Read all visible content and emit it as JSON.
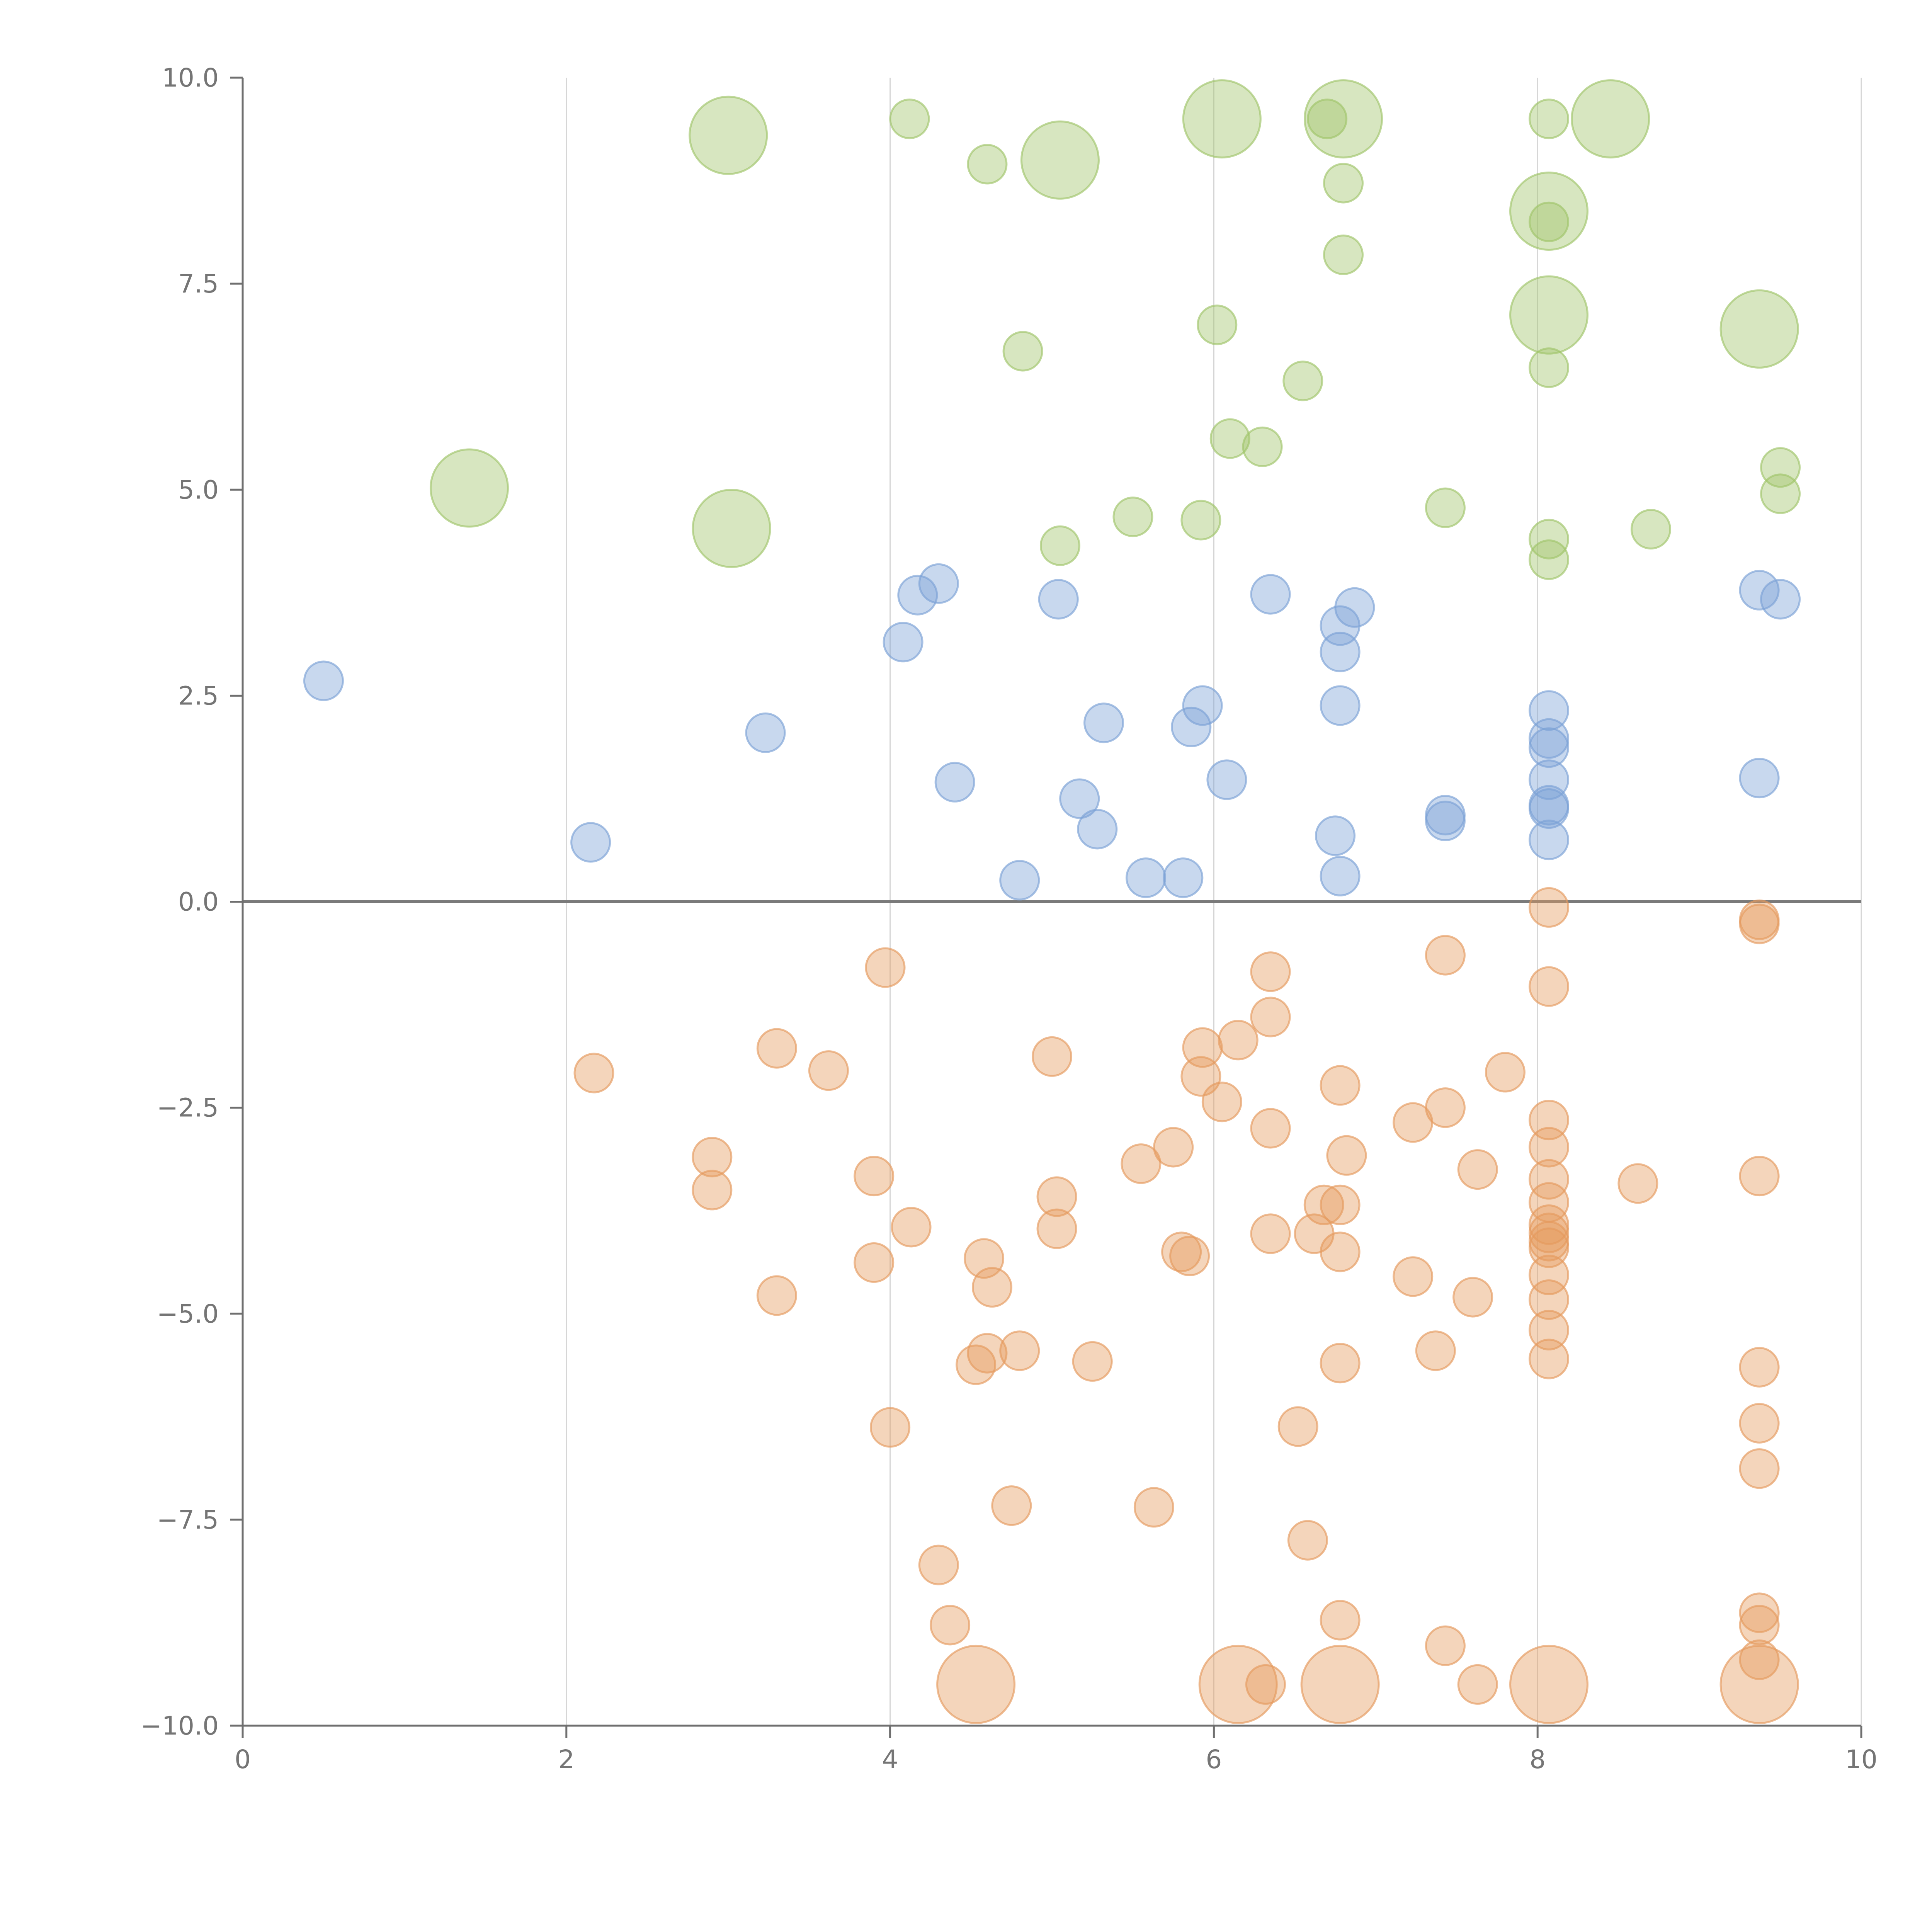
{
  "chart_data": {
    "type": "scatter",
    "title": "",
    "xlabel": "",
    "ylabel": "",
    "xlim": [
      0,
      10
    ],
    "ylim": [
      -10,
      10
    ],
    "grid": "vertical",
    "legend": "none",
    "x_ticks": [
      0,
      2,
      4,
      6,
      8,
      10
    ],
    "x_tick_labels": [
      "0",
      "2",
      "4",
      "6",
      "8",
      "10"
    ],
    "y_ticks": [
      10,
      7.5,
      5,
      2.5,
      0,
      -2.5,
      -5,
      -7.5,
      -10
    ],
    "y_tick_labels": [
      "10.0",
      "7.5",
      "5.0",
      "2.5",
      "0.0",
      "−2.5",
      "−5.0",
      "−7.5",
      "−10.0"
    ],
    "zero_line": 0,
    "series": [
      {
        "name": "green",
        "color": "#9fc46a",
        "points": [
          [
            3.0,
            9.3,
            3
          ],
          [
            4.12,
            9.5,
            1
          ],
          [
            4.6,
            8.95,
            1
          ],
          [
            5.05,
            9.0,
            3
          ],
          [
            6.05,
            9.5,
            3
          ],
          [
            6.7,
            9.5,
            1
          ],
          [
            6.8,
            9.5,
            3
          ],
          [
            8.45,
            9.5,
            3
          ],
          [
            8.07,
            9.5,
            1
          ],
          [
            6.8,
            8.72,
            1
          ],
          [
            8.07,
            8.38,
            3
          ],
          [
            8.07,
            8.25,
            1
          ],
          [
            6.8,
            7.85,
            1
          ],
          [
            8.07,
            7.12,
            3
          ],
          [
            9.37,
            6.95,
            3
          ],
          [
            6.02,
            7.0,
            1
          ],
          [
            4.82,
            6.68,
            1
          ],
          [
            6.55,
            6.32,
            1
          ],
          [
            8.07,
            6.48,
            1
          ],
          [
            6.1,
            5.62,
            1
          ],
          [
            6.3,
            5.52,
            1
          ],
          [
            1.4,
            5.02,
            3
          ],
          [
            3.02,
            4.53,
            3
          ],
          [
            5.05,
            4.32,
            1
          ],
          [
            5.5,
            4.67,
            1
          ],
          [
            5.92,
            4.63,
            1
          ],
          [
            7.43,
            4.78,
            1
          ],
          [
            8.07,
            4.4,
            1
          ],
          [
            8.07,
            4.15,
            1
          ],
          [
            8.7,
            4.52,
            1
          ],
          [
            9.5,
            5.27,
            1
          ],
          [
            9.5,
            4.95,
            1
          ]
        ]
      },
      {
        "name": "blue",
        "color": "#7ba1d6",
        "points": [
          [
            0.5,
            2.68,
            1
          ],
          [
            2.15,
            0.72,
            1
          ],
          [
            3.23,
            2.05,
            1
          ],
          [
            4.08,
            3.15,
            1
          ],
          [
            4.17,
            3.72,
            1
          ],
          [
            4.3,
            3.86,
            1
          ],
          [
            4.4,
            1.45,
            1
          ],
          [
            4.8,
            0.26,
            1
          ],
          [
            5.04,
            3.67,
            1
          ],
          [
            5.17,
            1.25,
            1
          ],
          [
            5.28,
            0.88,
            1
          ],
          [
            5.32,
            2.17,
            1
          ],
          [
            5.58,
            0.29,
            1
          ],
          [
            5.81,
            0.29,
            1
          ],
          [
            5.86,
            2.12,
            1
          ],
          [
            5.93,
            2.38,
            1
          ],
          [
            6.08,
            1.48,
            1
          ],
          [
            6.35,
            3.73,
            1
          ],
          [
            6.75,
            0.8,
            1
          ],
          [
            6.78,
            0.31,
            1
          ],
          [
            6.78,
            3.35,
            1
          ],
          [
            6.78,
            3.03,
            1
          ],
          [
            6.78,
            2.38,
            1
          ],
          [
            6.87,
            3.57,
            1
          ],
          [
            7.43,
            1.05,
            1
          ],
          [
            7.43,
            0.98,
            1
          ],
          [
            8.07,
            2.32,
            1
          ],
          [
            8.07,
            1.98,
            1
          ],
          [
            8.07,
            1.87,
            1
          ],
          [
            8.07,
            1.48,
            1
          ],
          [
            8.07,
            1.17,
            1
          ],
          [
            8.07,
            1.13,
            1
          ],
          [
            8.07,
            0.75,
            1
          ],
          [
            9.37,
            3.78,
            1
          ],
          [
            9.5,
            3.67,
            1
          ],
          [
            9.37,
            1.5,
            1
          ]
        ]
      },
      {
        "name": "orange",
        "color": "#e59a5e",
        "points": [
          [
            2.17,
            -2.08,
            1
          ],
          [
            2.9,
            -3.1,
            1
          ],
          [
            2.9,
            -3.5,
            1
          ],
          [
            3.3,
            -1.78,
            1
          ],
          [
            3.3,
            -4.78,
            1
          ],
          [
            3.62,
            -2.05,
            1
          ],
          [
            3.9,
            -3.33,
            1
          ],
          [
            3.9,
            -4.38,
            1
          ],
          [
            3.97,
            -0.8,
            1
          ],
          [
            4.0,
            -6.38,
            1
          ],
          [
            4.13,
            -3.95,
            1
          ],
          [
            4.3,
            -8.05,
            1
          ],
          [
            4.37,
            -8.78,
            1
          ],
          [
            4.53,
            -5.62,
            1
          ],
          [
            4.58,
            -4.33,
            1
          ],
          [
            4.6,
            -5.48,
            1
          ],
          [
            4.63,
            -4.68,
            1
          ],
          [
            4.75,
            -7.33,
            1
          ],
          [
            4.8,
            -5.45,
            1
          ],
          [
            4.53,
            -9.5,
            3
          ],
          [
            5.0,
            -1.88,
            1
          ],
          [
            5.03,
            -3.58,
            1
          ],
          [
            5.03,
            -3.97,
            1
          ],
          [
            5.25,
            -5.58,
            1
          ],
          [
            5.55,
            -3.18,
            1
          ],
          [
            5.63,
            -7.35,
            1
          ],
          [
            5.75,
            -2.98,
            1
          ],
          [
            5.8,
            -4.25,
            1
          ],
          [
            5.85,
            -4.3,
            1
          ],
          [
            5.92,
            -2.12,
            1
          ],
          [
            5.93,
            -1.77,
            1
          ],
          [
            6.05,
            -2.43,
            1
          ],
          [
            6.15,
            -1.68,
            1
          ],
          [
            6.15,
            -9.5,
            3
          ],
          [
            6.32,
            -9.5,
            1
          ],
          [
            6.35,
            -1.4,
            1
          ],
          [
            6.35,
            -0.85,
            1
          ],
          [
            6.35,
            -2.75,
            1
          ],
          [
            6.35,
            -4.03,
            1
          ],
          [
            6.52,
            -6.37,
            1
          ],
          [
            6.58,
            -7.75,
            1
          ],
          [
            6.62,
            -4.03,
            1
          ],
          [
            6.68,
            -3.68,
            1
          ],
          [
            6.78,
            -3.68,
            1
          ],
          [
            6.78,
            -2.23,
            1
          ],
          [
            6.78,
            -4.25,
            1
          ],
          [
            6.78,
            -5.6,
            1
          ],
          [
            6.78,
            -8.72,
            1
          ],
          [
            6.78,
            -9.5,
            3
          ],
          [
            6.82,
            -3.08,
            1
          ],
          [
            7.23,
            -2.68,
            1
          ],
          [
            7.23,
            -4.55,
            1
          ],
          [
            7.37,
            -5.45,
            1
          ],
          [
            7.43,
            -0.65,
            1
          ],
          [
            7.43,
            -2.5,
            1
          ],
          [
            7.43,
            -9.03,
            1
          ],
          [
            7.6,
            -4.8,
            1
          ],
          [
            7.63,
            -3.25,
            1
          ],
          [
            7.63,
            -9.5,
            1
          ],
          [
            7.8,
            -2.07,
            1
          ],
          [
            8.07,
            -0.07,
            1
          ],
          [
            8.07,
            -1.03,
            1
          ],
          [
            8.07,
            -2.65,
            1
          ],
          [
            8.07,
            -2.98,
            1
          ],
          [
            8.07,
            -3.37,
            1
          ],
          [
            8.07,
            -3.65,
            1
          ],
          [
            8.07,
            -3.92,
            1
          ],
          [
            8.07,
            -4.02,
            1
          ],
          [
            8.07,
            -4.12,
            1
          ],
          [
            8.07,
            -4.2,
            1
          ],
          [
            8.07,
            -4.53,
            1
          ],
          [
            8.07,
            -4.83,
            1
          ],
          [
            8.07,
            -5.2,
            1
          ],
          [
            8.07,
            -5.55,
            1
          ],
          [
            8.07,
            -9.5,
            3
          ],
          [
            8.62,
            -3.42,
            1
          ],
          [
            9.37,
            -0.22,
            1
          ],
          [
            9.37,
            -0.27,
            1
          ],
          [
            9.37,
            -3.33,
            1
          ],
          [
            9.37,
            -5.65,
            1
          ],
          [
            9.37,
            -6.33,
            1
          ],
          [
            9.37,
            -6.88,
            1
          ],
          [
            9.37,
            -8.63,
            1
          ],
          [
            9.37,
            -8.78,
            1
          ],
          [
            9.37,
            -9.2,
            1
          ],
          [
            9.37,
            -9.5,
            3
          ]
        ]
      }
    ]
  }
}
